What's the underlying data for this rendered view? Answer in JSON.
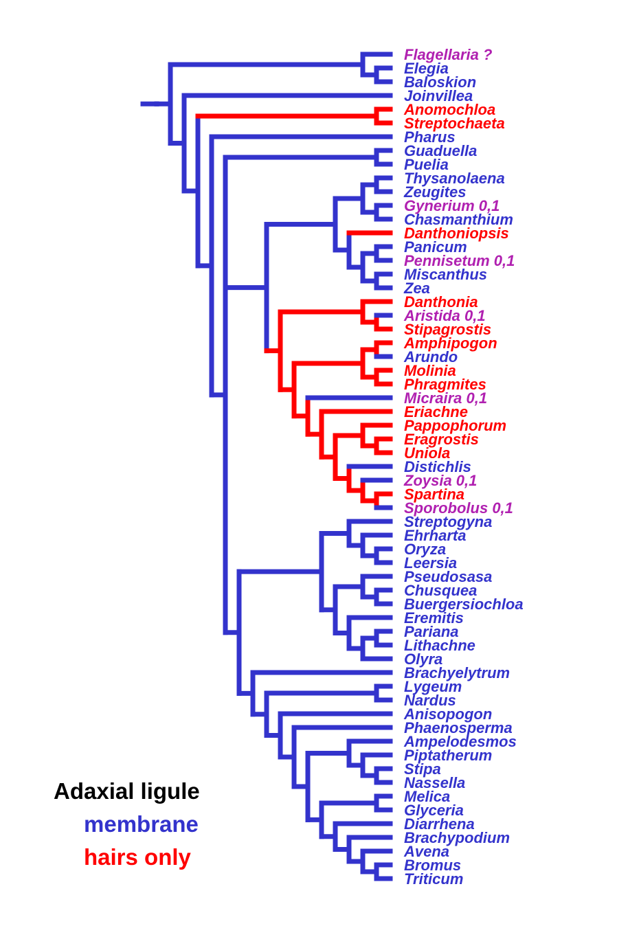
{
  "colors": {
    "membrane": "#3333cc",
    "hairs": "#ff0000",
    "polymorphic": "#b020b0",
    "text": "#000000"
  },
  "legend": {
    "title": "Adaxial ligule",
    "membrane": "membrane",
    "hairs": "hairs only"
  },
  "taxa": [
    {
      "label": "Flagellaria ?",
      "state": "polymorphic"
    },
    {
      "label": "Elegia",
      "state": "membrane"
    },
    {
      "label": "Baloskion",
      "state": "membrane"
    },
    {
      "label": "Joinvillea",
      "state": "membrane"
    },
    {
      "label": "Anomochloa",
      "state": "hairs"
    },
    {
      "label": "Streptochaeta",
      "state": "hairs"
    },
    {
      "label": "Pharus",
      "state": "membrane"
    },
    {
      "label": "Guaduella",
      "state": "membrane"
    },
    {
      "label": "Puelia",
      "state": "membrane"
    },
    {
      "label": "Thysanolaena",
      "state": "membrane"
    },
    {
      "label": "Zeugites",
      "state": "membrane"
    },
    {
      "label": "Gynerium 0,1",
      "state": "polymorphic"
    },
    {
      "label": "Chasmanthium",
      "state": "membrane"
    },
    {
      "label": "Danthoniopsis",
      "state": "hairs"
    },
    {
      "label": "Panicum",
      "state": "membrane"
    },
    {
      "label": "Pennisetum 0,1",
      "state": "polymorphic"
    },
    {
      "label": "Miscanthus",
      "state": "membrane"
    },
    {
      "label": "Zea",
      "state": "membrane"
    },
    {
      "label": "Danthonia",
      "state": "hairs"
    },
    {
      "label": "Aristida 0,1",
      "state": "polymorphic"
    },
    {
      "label": "Stipagrostis",
      "state": "hairs"
    },
    {
      "label": "Amphipogon",
      "state": "hairs"
    },
    {
      "label": "Arundo",
      "state": "membrane"
    },
    {
      "label": "Molinia",
      "state": "hairs"
    },
    {
      "label": "Phragmites",
      "state": "hairs"
    },
    {
      "label": "Micraira 0,1",
      "state": "polymorphic"
    },
    {
      "label": "Eriachne",
      "state": "hairs"
    },
    {
      "label": "Pappophorum",
      "state": "hairs"
    },
    {
      "label": "Eragrostis",
      "state": "hairs"
    },
    {
      "label": "Uniola",
      "state": "hairs"
    },
    {
      "label": "Distichlis",
      "state": "membrane"
    },
    {
      "label": "Zoysia 0,1",
      "state": "polymorphic"
    },
    {
      "label": "Spartina",
      "state": "hairs"
    },
    {
      "label": "Sporobolus 0,1",
      "state": "polymorphic"
    },
    {
      "label": "Streptogyna",
      "state": "membrane"
    },
    {
      "label": "Ehrharta",
      "state": "membrane"
    },
    {
      "label": "Oryza",
      "state": "membrane"
    },
    {
      "label": "Leersia",
      "state": "membrane"
    },
    {
      "label": "Pseudosasa",
      "state": "membrane"
    },
    {
      "label": "Chusquea",
      "state": "membrane"
    },
    {
      "label": "Buergersiochloa",
      "state": "membrane"
    },
    {
      "label": "Eremitis",
      "state": "membrane"
    },
    {
      "label": "Pariana",
      "state": "membrane"
    },
    {
      "label": "Lithachne",
      "state": "membrane"
    },
    {
      "label": "Olyra",
      "state": "membrane"
    },
    {
      "label": "Brachyelytrum",
      "state": "membrane"
    },
    {
      "label": "Lygeum",
      "state": "membrane"
    },
    {
      "label": "Nardus",
      "state": "membrane"
    },
    {
      "label": "Anisopogon",
      "state": "membrane"
    },
    {
      "label": "Phaenosperma",
      "state": "membrane"
    },
    {
      "label": "Ampelodesmos",
      "state": "membrane"
    },
    {
      "label": "Piptatherum",
      "state": "membrane"
    },
    {
      "label": "Stipa",
      "state": "membrane"
    },
    {
      "label": "Nassella",
      "state": "membrane"
    },
    {
      "label": "Melica",
      "state": "membrane"
    },
    {
      "label": "Glyceria",
      "state": "membrane"
    },
    {
      "label": "Diarrhena",
      "state": "membrane"
    },
    {
      "label": "Brachypodium",
      "state": "membrane"
    },
    {
      "label": "Avena",
      "state": "membrane"
    },
    {
      "label": "Bromus",
      "state": "membrane"
    },
    {
      "label": "Triticum",
      "state": "membrane"
    }
  ],
  "tree": "(((0,(1,2)),(3,((4,5),(6,((7,8),((((9,10),(11,12)),(13,((14,15),(16,17)))),((18,(19,20)),(((21,22),(23,24)),(25,(26,((27,(28,29)),(30,(31,(32,33))))))))),(((34,(35,(36,37))),((38,(39,40)),(41,((42,43),44)))),(45,((46,47),(48,(49,((50,(51,(52,53))),((54,55),(56,(57,(58,(59,60)))))))))))))))))))",
  "node_states": {
    "(4,5)": "hairs",
    "((18,(19,20)),(((21,22),(23,24)),(25,(26,((27,(28,29)),(30,(31,(32,33))))))))": "hairs",
    "(18,(19,20))": "hairs",
    "(19,20)": "hairs",
    "(((21,22),(23,24)),(25,(26,((27,(28,29)),(30,(31,(32,33)))))))": "hairs",
    "((21,22),(23,24))": "hairs",
    "(21,22)": "hairs",
    "(23,24)": "hairs",
    "(25,(26,((27,(28,29)),(30,(31,(32,33))))))": "hairs",
    "(26,((27,(28,29)),(30,(31,(32,33)))))": "hairs",
    "((27,(28,29)),(30,(31,(32,33))))": "hairs",
    "(27,(28,29))": "hairs",
    "(28,29)": "hairs",
    "(30,(31,(32,33)))": "hairs",
    "(31,(32,33))": "hairs",
    "(32,33)": "hairs"
  }
}
